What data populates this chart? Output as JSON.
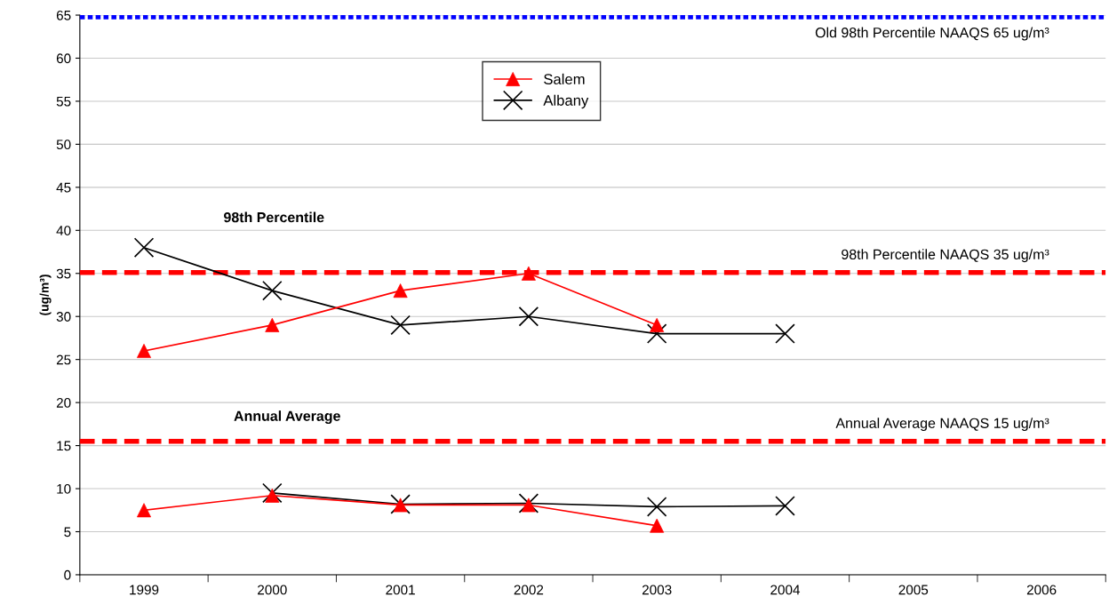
{
  "chart_data": {
    "type": "line",
    "ylabel": "(ug/m³)",
    "categories": [
      "1999",
      "2000",
      "2001",
      "2002",
      "2003",
      "2004",
      "2005",
      "2006"
    ],
    "series": [
      {
        "name": "Salem",
        "color": "#ff0000",
        "marker": "triangle",
        "values": [
          26,
          29,
          33,
          35,
          29,
          null,
          null,
          null
        ]
      },
      {
        "name": "Albany",
        "color": "#000000",
        "marker": "cross",
        "values": [
          38,
          33,
          29,
          30,
          28,
          28,
          null,
          null
        ]
      },
      {
        "color": "#ff0000",
        "marker": "triangle",
        "values": [
          7.5,
          9.2,
          8.1,
          8.1,
          5.7,
          null,
          null,
          null
        ]
      },
      {
        "color": "#000000",
        "marker": "cross",
        "values": [
          null,
          9.5,
          8.2,
          8.3,
          7.9,
          8.0,
          null,
          null
        ]
      }
    ],
    "ylim": [
      0,
      65
    ],
    "yticks": [
      0,
      5,
      10,
      15,
      20,
      25,
      30,
      35,
      40,
      45,
      50,
      55,
      60,
      65
    ],
    "grid": "y",
    "legend": "top",
    "ref_lines": [
      {
        "axis": "y",
        "value": 64.8,
        "label": "Old 98th Percentile NAAQS 65 ug/m³",
        "color": "#0000ff",
        "line_style": "dotted"
      },
      {
        "axis": "y",
        "value": 35.1,
        "label": "98th Percentile NAAQS 35 ug/m³",
        "color": "#ff0000",
        "line_style": "dashed"
      },
      {
        "axis": "y",
        "value": 15.5,
        "label": "Annual Average NAAQS 15 ug/m³",
        "color": "#ff0000",
        "line_style": "dashed"
      }
    ],
    "annotations": [
      "98th Percentile",
      "Annual Average"
    ]
  }
}
